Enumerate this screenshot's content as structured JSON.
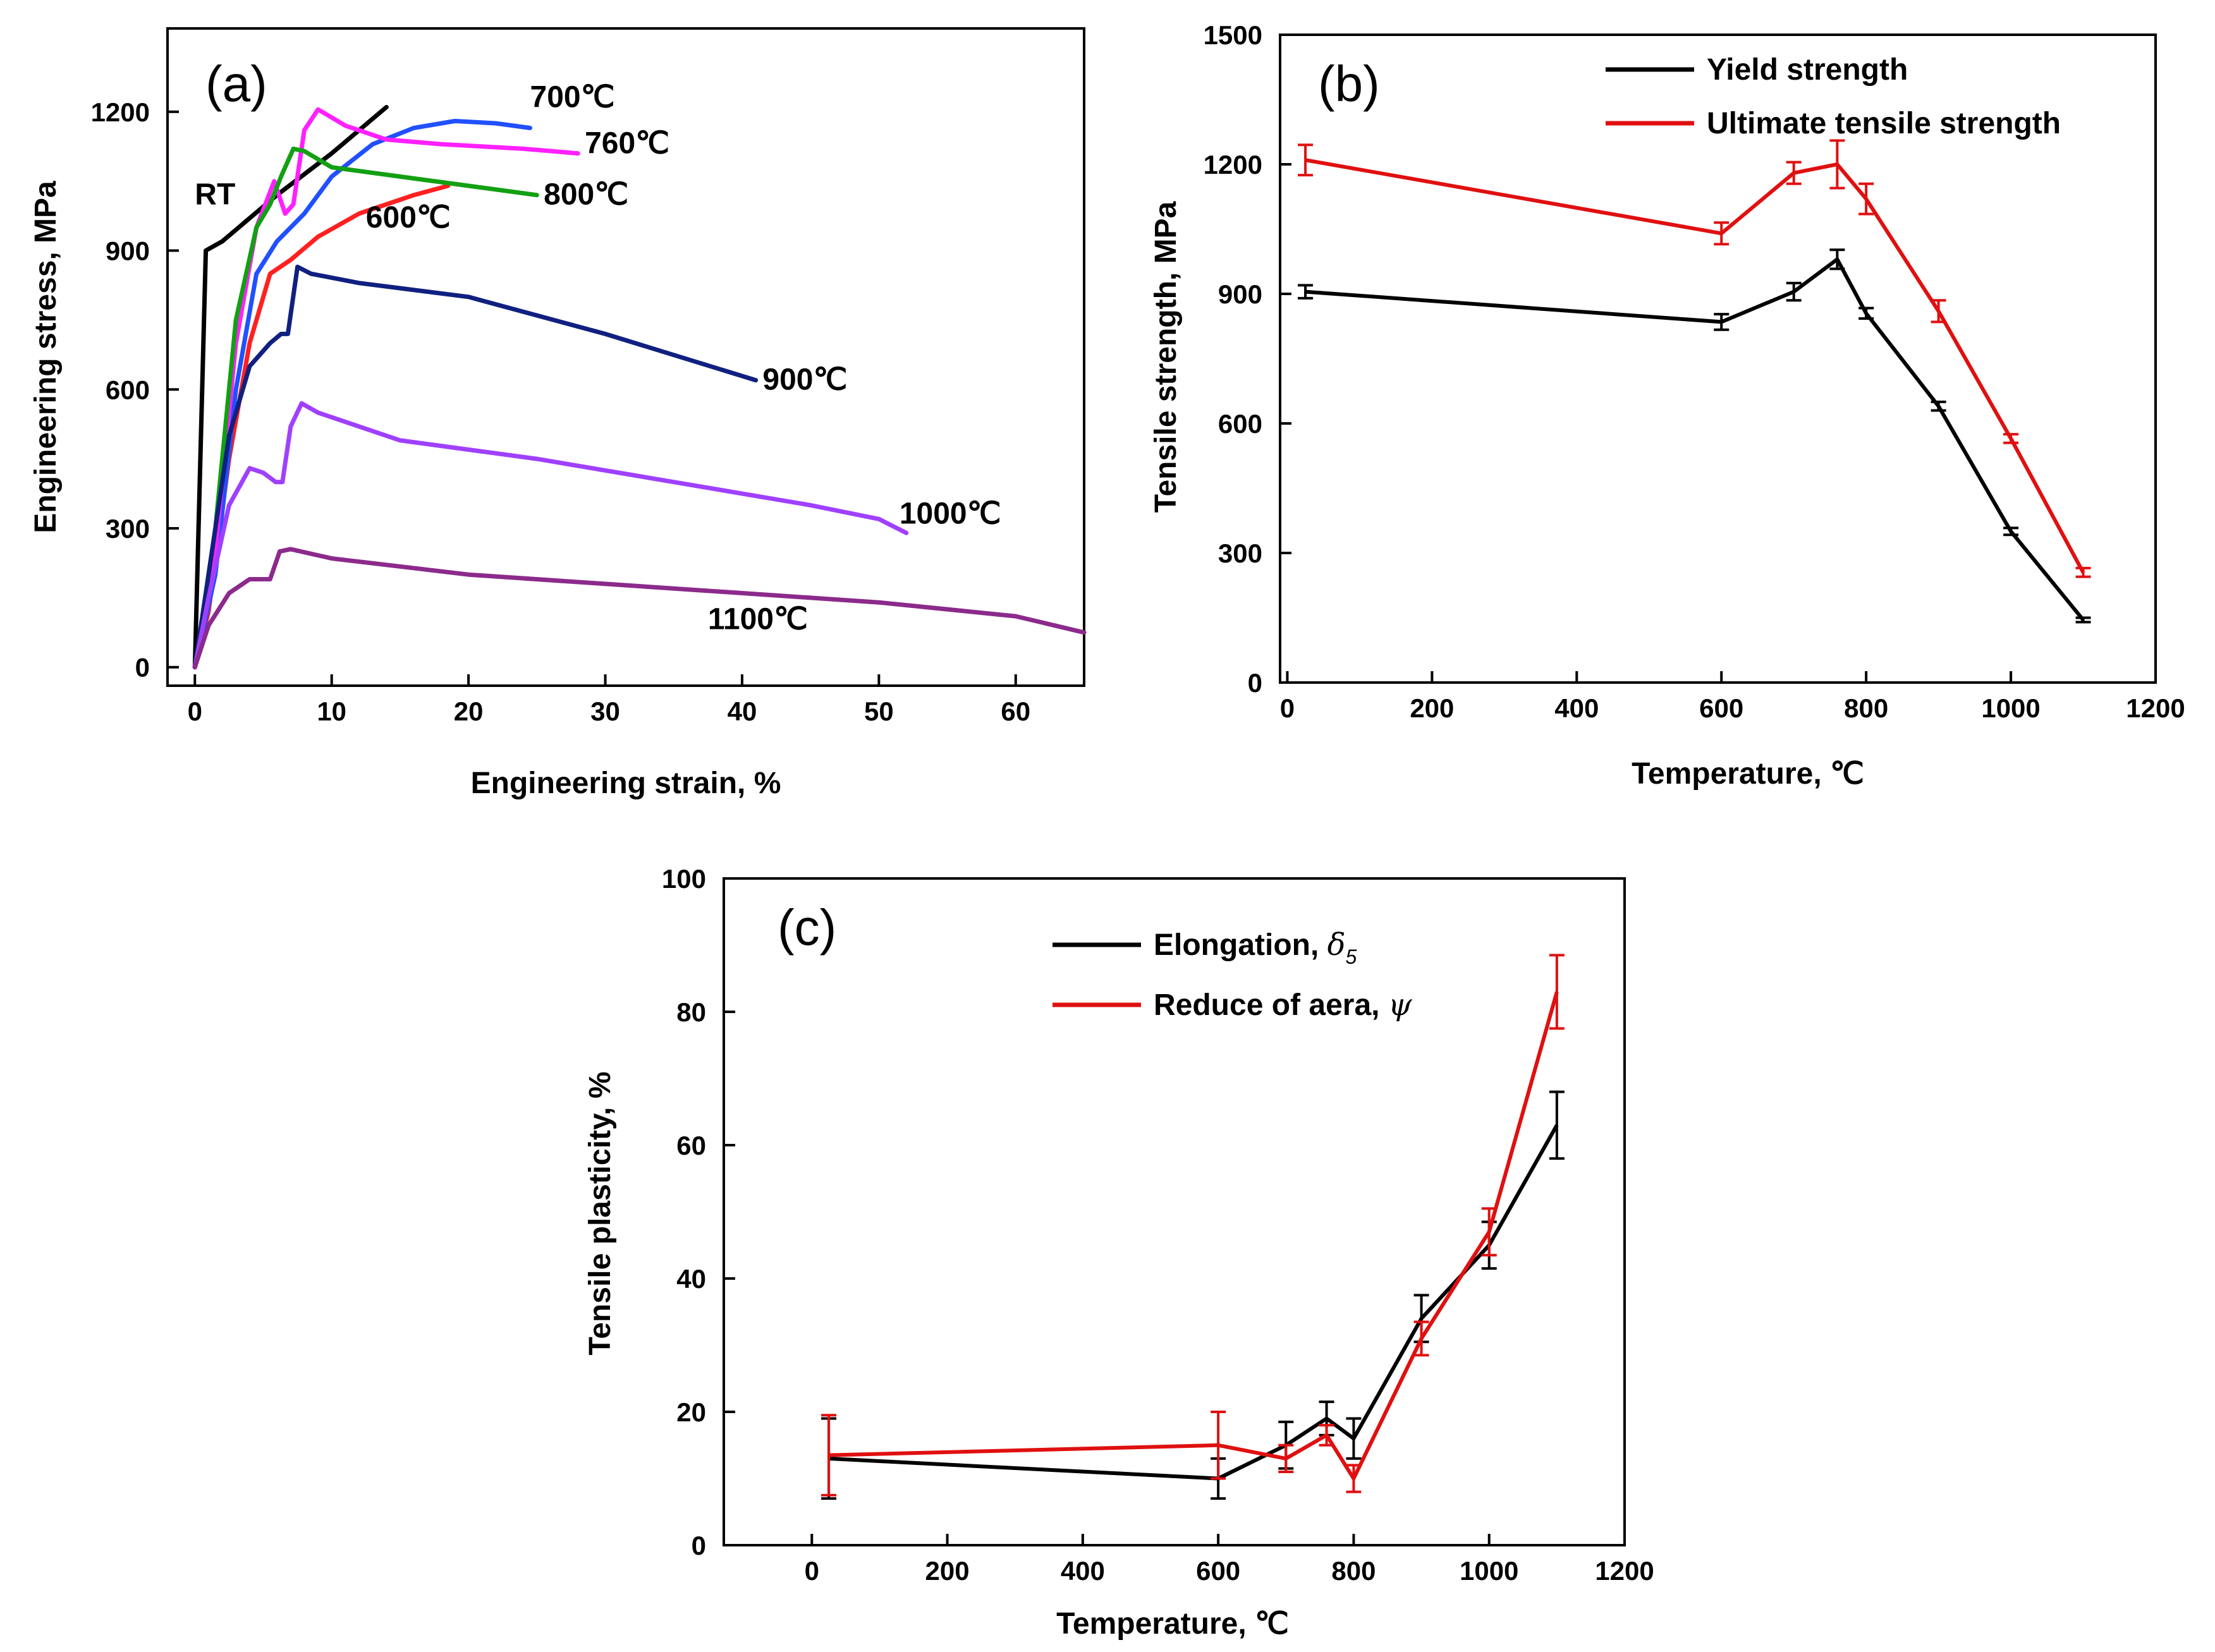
{
  "chart_data": [
    {
      "panel": "(a)",
      "type": "line",
      "xlabel": "Engineering strain, %",
      "ylabel": "Engineering stress, MPa",
      "xlim": [
        -2,
        65
      ],
      "ylim": [
        -40,
        1380
      ],
      "xticks": [
        0,
        10,
        20,
        30,
        40,
        50,
        60
      ],
      "yticks": [
        0,
        300,
        600,
        900,
        1200
      ],
      "series": [
        {
          "name": "RT",
          "label": "RT",
          "color": "#000000",
          "labelX": 0.0,
          "labelY": 1000,
          "points": [
            [
              0,
              0
            ],
            [
              0.8,
              900
            ],
            [
              2,
              920
            ],
            [
              6,
              1020
            ],
            [
              10,
              1110
            ],
            [
              14,
              1210
            ]
          ]
        },
        {
          "name": "600",
          "label": "600℃",
          "color": "#ff2020",
          "labelX": 12.5,
          "labelY": 950,
          "points": [
            [
              0,
              0
            ],
            [
              1,
              120
            ],
            [
              2.5,
              450
            ],
            [
              4,
              700
            ],
            [
              5.5,
              850
            ],
            [
              7,
              880
            ],
            [
              9,
              930
            ],
            [
              12,
              980
            ],
            [
              16,
              1020
            ],
            [
              18.5,
              1040
            ]
          ]
        },
        {
          "name": "700",
          "label": "700℃",
          "color": "#2050ff",
          "labelX": 24.5,
          "labelY": 1210,
          "points": [
            [
              0,
              0
            ],
            [
              1.5,
              200
            ],
            [
              3,
              600
            ],
            [
              4.5,
              850
            ],
            [
              6,
              920
            ],
            [
              8,
              980
            ],
            [
              10,
              1060
            ],
            [
              13,
              1130
            ],
            [
              16,
              1165
            ],
            [
              19,
              1180
            ],
            [
              22,
              1175
            ],
            [
              24.5,
              1165
            ]
          ]
        },
        {
          "name": "760",
          "label": "760℃",
          "color": "#ff20ff",
          "labelX": 28.5,
          "labelY": 1110,
          "points": [
            [
              0,
              0
            ],
            [
              1.5,
              250
            ],
            [
              3,
              700
            ],
            [
              4.5,
              950
            ],
            [
              5.8,
              1050
            ],
            [
              6.6,
              980
            ],
            [
              7.2,
              1000
            ],
            [
              8,
              1160
            ],
            [
              9,
              1205
            ],
            [
              11,
              1170
            ],
            [
              14,
              1140
            ],
            [
              18,
              1130
            ],
            [
              24,
              1120
            ],
            [
              28,
              1110
            ]
          ]
        },
        {
          "name": "800",
          "label": "800℃",
          "color": "#12a012",
          "labelX": 25.5,
          "labelY": 1000,
          "points": [
            [
              0,
              0
            ],
            [
              1.5,
              300
            ],
            [
              3,
              750
            ],
            [
              4.5,
              950
            ],
            [
              5.5,
              1000
            ],
            [
              6.3,
              1060
            ],
            [
              7.2,
              1120
            ],
            [
              8,
              1115
            ],
            [
              10,
              1080
            ],
            [
              15,
              1060
            ],
            [
              20,
              1040
            ],
            [
              25,
              1020
            ]
          ]
        },
        {
          "name": "900",
          "label": "900℃",
          "color": "#102080",
          "labelX": 41.5,
          "labelY": 600,
          "points": [
            [
              0,
              0
            ],
            [
              1,
              200
            ],
            [
              2.5,
              500
            ],
            [
              4,
              650
            ],
            [
              5.5,
              700
            ],
            [
              6.3,
              720
            ],
            [
              6.8,
              720
            ],
            [
              7.5,
              865
            ],
            [
              8.5,
              850
            ],
            [
              12,
              830
            ],
            [
              20,
              800
            ],
            [
              30,
              720
            ],
            [
              41,
              620
            ]
          ]
        },
        {
          "name": "1000",
          "label": "1000℃",
          "color": "#a040ff",
          "labelX": 51.5,
          "labelY": 310,
          "points": [
            [
              0,
              0
            ],
            [
              1,
              150
            ],
            [
              2.5,
              350
            ],
            [
              4,
              430
            ],
            [
              5,
              420
            ],
            [
              5.9,
              400
            ],
            [
              6.4,
              400
            ],
            [
              7,
              520
            ],
            [
              7.8,
              570
            ],
            [
              9,
              550
            ],
            [
              15,
              490
            ],
            [
              25,
              450
            ],
            [
              35,
              400
            ],
            [
              45,
              350
            ],
            [
              50,
              320
            ],
            [
              52,
              290
            ]
          ]
        },
        {
          "name": "1100",
          "label": "1100℃",
          "color": "#8c2a8c",
          "labelX": 37.5,
          "labelY": 82,
          "points": [
            [
              0,
              0
            ],
            [
              1,
              90
            ],
            [
              2.5,
              160
            ],
            [
              4,
              190
            ],
            [
              5,
              190
            ],
            [
              5.5,
              190
            ],
            [
              6.2,
              250
            ],
            [
              7,
              255
            ],
            [
              10,
              235
            ],
            [
              20,
              200
            ],
            [
              30,
              180
            ],
            [
              40,
              160
            ],
            [
              50,
              140
            ],
            [
              60,
              110
            ],
            [
              65,
              75
            ]
          ]
        }
      ]
    },
    {
      "panel": "(b)",
      "type": "line",
      "xlabel": "Temperature, ℃",
      "ylabel": "Tensile strength, MPa",
      "xlim": [
        -10,
        1200
      ],
      "ylim": [
        0,
        1500
      ],
      "xticks": [
        0,
        200,
        400,
        600,
        800,
        1000,
        1200
      ],
      "yticks": [
        0,
        300,
        600,
        900,
        1200,
        1500
      ],
      "legend": "top-right",
      "series": [
        {
          "name": "Yield strength",
          "color": "#000000",
          "x": [
            25,
            600,
            700,
            760,
            800,
            900,
            1000,
            1100
          ],
          "y": [
            905,
            835,
            905,
            980,
            855,
            640,
            350,
            145
          ],
          "err": [
            15,
            18,
            20,
            22,
            12,
            10,
            8,
            5
          ]
        },
        {
          "name": "Ultimate tensile strength",
          "color": "#e01010",
          "x": [
            25,
            600,
            700,
            760,
            800,
            900,
            1000,
            1100
          ],
          "y": [
            1210,
            1040,
            1180,
            1200,
            1120,
            860,
            565,
            255
          ],
          "err": [
            35,
            25,
            25,
            55,
            35,
            25,
            10,
            10
          ]
        }
      ]
    },
    {
      "panel": "(c)",
      "type": "line",
      "xlabel": "Temperature, ℃",
      "ylabel": "Tensile plasticity, %",
      "xlim": [
        -130,
        1200
      ],
      "ylim": [
        0,
        100
      ],
      "xticks": [
        0,
        200,
        400,
        600,
        800,
        1000,
        1200
      ],
      "yticks": [
        0,
        20,
        40,
        60,
        80,
        100
      ],
      "legend": "top-right",
      "series": [
        {
          "name": "Elongation, δ5",
          "label_text": "Elongation, ",
          "symbol": "δ",
          "subscript": "5",
          "color": "#000000",
          "x": [
            25,
            600,
            700,
            760,
            800,
            900,
            1000,
            1100
          ],
          "y": [
            13,
            10,
            15,
            19,
            16,
            34,
            45,
            63
          ],
          "err": [
            6,
            3,
            3.5,
            2.5,
            3,
            3.5,
            3.5,
            5
          ]
        },
        {
          "name": "Reduce of aera, ψ",
          "label_text": "Reduce of aera, ",
          "symbol": "ψ",
          "subscript": "",
          "color": "#e01010",
          "x": [
            25,
            600,
            700,
            760,
            800,
            900,
            1000,
            1100
          ],
          "y": [
            13.5,
            15,
            13,
            16.5,
            10,
            31,
            47,
            83
          ],
          "err": [
            6,
            5,
            2,
            1.5,
            2,
            2.5,
            3.5,
            5.5
          ]
        }
      ]
    }
  ]
}
